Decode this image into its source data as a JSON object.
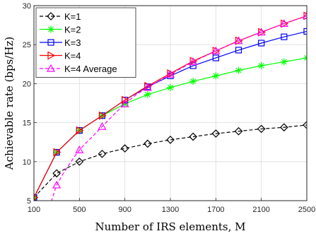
{
  "chart_data": {
    "type": "line",
    "title": "",
    "xlabel": "Number of IRS elements, M",
    "ylabel": "Achievable rate (bps/Hz)",
    "xlim": [
      100,
      2500
    ],
    "ylim": [
      5,
      30
    ],
    "xticks": [
      100,
      500,
      900,
      1300,
      1700,
      2100,
      2500
    ],
    "yticks": [
      5,
      10,
      15,
      20,
      25,
      30
    ],
    "grid": true,
    "legend_position": "top-left",
    "x": [
      100,
      300,
      500,
      700,
      900,
      1100,
      1300,
      1500,
      1700,
      1900,
      2100,
      2300,
      2500
    ],
    "series": [
      {
        "name": "K=1",
        "color": "#000000",
        "marker": "diamond",
        "dashed": true,
        "values": [
          5.4,
          8.5,
          10.0,
          11.0,
          11.7,
          12.3,
          12.8,
          13.2,
          13.6,
          13.9,
          14.2,
          14.4,
          14.7
        ]
      },
      {
        "name": "K=2",
        "color": "#00ff00",
        "marker": "asterisk",
        "dashed": false,
        "values": [
          5.4,
          11.2,
          14.0,
          15.9,
          17.4,
          18.6,
          19.5,
          20.3,
          21.0,
          21.7,
          22.3,
          22.8,
          23.3
        ]
      },
      {
        "name": "K=3",
        "color": "#0000ff",
        "marker": "square",
        "dashed": false,
        "values": [
          5.4,
          11.2,
          14.0,
          15.9,
          17.9,
          19.6,
          21.0,
          22.3,
          23.3,
          24.3,
          25.2,
          26.0,
          26.7
        ]
      },
      {
        "name": "K=4",
        "color": "#ff0000",
        "marker": "triangle-right",
        "dashed": false,
        "values": [
          5.4,
          11.2,
          14.0,
          15.9,
          17.9,
          19.7,
          21.3,
          22.9,
          24.2,
          25.5,
          26.6,
          27.7,
          28.7
        ]
      },
      {
        "name": "K=4 Average",
        "color": "#ff00ff",
        "marker": "triangle-up",
        "dashed": true,
        "x": [
          300,
          500,
          700,
          900,
          1100,
          1300,
          1500,
          1700,
          1900,
          2100,
          2300,
          2500
        ],
        "curve_x": [
          150,
          200,
          250,
          300,
          350,
          400,
          450,
          500,
          550,
          600,
          700,
          800,
          900,
          1000,
          1100,
          1300,
          1500,
          1700,
          1900,
          2100,
          2300,
          2500
        ],
        "curve_values": [
          0.8,
          2.6,
          4.8,
          7.0,
          8.3,
          9.4,
          10.5,
          11.5,
          12.3,
          13.0,
          14.5,
          16.0,
          17.4,
          18.6,
          19.5,
          21.2,
          22.8,
          24.2,
          25.5,
          26.6,
          27.7,
          28.7
        ],
        "values": [
          7.0,
          11.5,
          14.5,
          17.4,
          19.5,
          21.2,
          22.8,
          24.2,
          25.5,
          26.6,
          27.7,
          28.7
        ]
      }
    ]
  }
}
